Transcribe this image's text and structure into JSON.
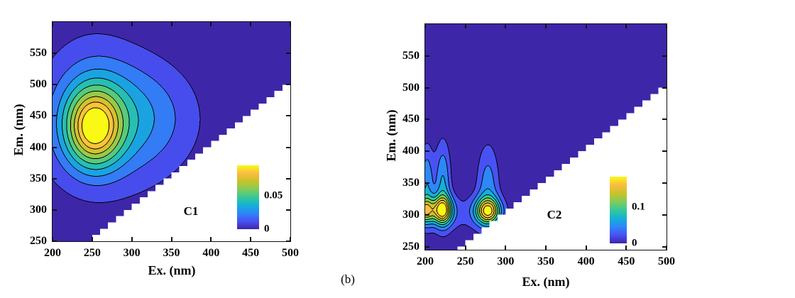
{
  "figure_label": "(b)",
  "styles": {
    "background": "#ffffff",
    "axis_color": "#111111",
    "text_color": "#000000",
    "contour_line_color": "#000000",
    "mask_color": "#ffffff",
    "parula_stops": [
      "#3e26a8",
      "#4852f4",
      "#2e87f7",
      "#12b1d6",
      "#37c897",
      "#81cc59",
      "#c9c229",
      "#fbbc41",
      "#f9f915"
    ]
  },
  "chart_data": [
    {
      "type": "contour",
      "label": "C1",
      "xlabel": "Ex. (nm)",
      "ylabel": "Em. (nm)",
      "xlim": [
        200,
        500
      ],
      "ylim": [
        250,
        600
      ],
      "xticks": [
        200,
        250,
        300,
        350,
        400,
        450,
        500
      ],
      "yticks": [
        250,
        300,
        350,
        400,
        450,
        500,
        550
      ],
      "levels": {
        "start": 0.01,
        "step": 0.01,
        "count": 9
      },
      "colorbar": {
        "max": 0.095,
        "ticks": [
          {
            "label": "0.05",
            "value": 0.05
          },
          {
            "label": "0",
            "value": 0
          }
        ]
      },
      "mask": {
        "step_nm": 10,
        "offset_nm": 10
      },
      "peaks_summary": [
        {
          "ex": 252,
          "em": 431,
          "max_value": 0.095
        }
      ],
      "components": [
        {
          "ex": 252,
          "em": 431,
          "amp": 0.07,
          "sx": 24,
          "sy": 42
        },
        {
          "ex": 300,
          "em": 448,
          "amp": 0.022,
          "sx": 55,
          "sy": 60
        },
        {
          "ex": 262,
          "em": 432,
          "amp": 0.014,
          "sx": 75,
          "sy": 100
        },
        {
          "ex": 248,
          "em": 480,
          "amp": 0.01,
          "sx": 38,
          "sy": 75
        }
      ]
    },
    {
      "type": "contour",
      "label": "C2",
      "xlabel": "Ex. (nm)",
      "ylabel": "Em. (nm)",
      "xlim": [
        200,
        500
      ],
      "ylim": [
        245,
        600
      ],
      "xticks": [
        200,
        250,
        300,
        350,
        400,
        450,
        500
      ],
      "yticks": [
        250,
        300,
        350,
        400,
        450,
        500,
        550
      ],
      "levels": {
        "start": 0.02,
        "step": 0.02,
        "count": 8
      },
      "colorbar": {
        "max": 0.185,
        "ticks": [
          {
            "label": "0.1",
            "value": 0.1
          },
          {
            "label": "0",
            "value": 0
          }
        ]
      },
      "mask": {
        "step_nm": 10,
        "offset_nm": 10
      },
      "peaks_summary": [
        {
          "ex": 200,
          "em": 307,
          "max_value": 0.15
        },
        {
          "ex": 221,
          "em": 307,
          "max_value": 0.185
        },
        {
          "ex": 278,
          "em": 306,
          "max_value": 0.175
        }
      ],
      "components": [
        {
          "ex": 199,
          "em": 307,
          "amp": 0.1,
          "sx": 8,
          "sy": 14
        },
        {
          "ex": 221,
          "em": 307,
          "amp": 0.13,
          "sx": 9,
          "sy": 15
        },
        {
          "ex": 278,
          "em": 306,
          "amp": 0.125,
          "sx": 11,
          "sy": 14
        },
        {
          "ex": 202,
          "em": 352,
          "amp": 0.055,
          "sx": 6,
          "sy": 42
        },
        {
          "ex": 222,
          "em": 352,
          "amp": 0.06,
          "sx": 7,
          "sy": 46
        },
        {
          "ex": 278,
          "em": 345,
          "amp": 0.05,
          "sx": 10,
          "sy": 48
        },
        {
          "ex": 240,
          "em": 302,
          "amp": 0.024,
          "sx": 46,
          "sy": 24
        }
      ]
    }
  ]
}
